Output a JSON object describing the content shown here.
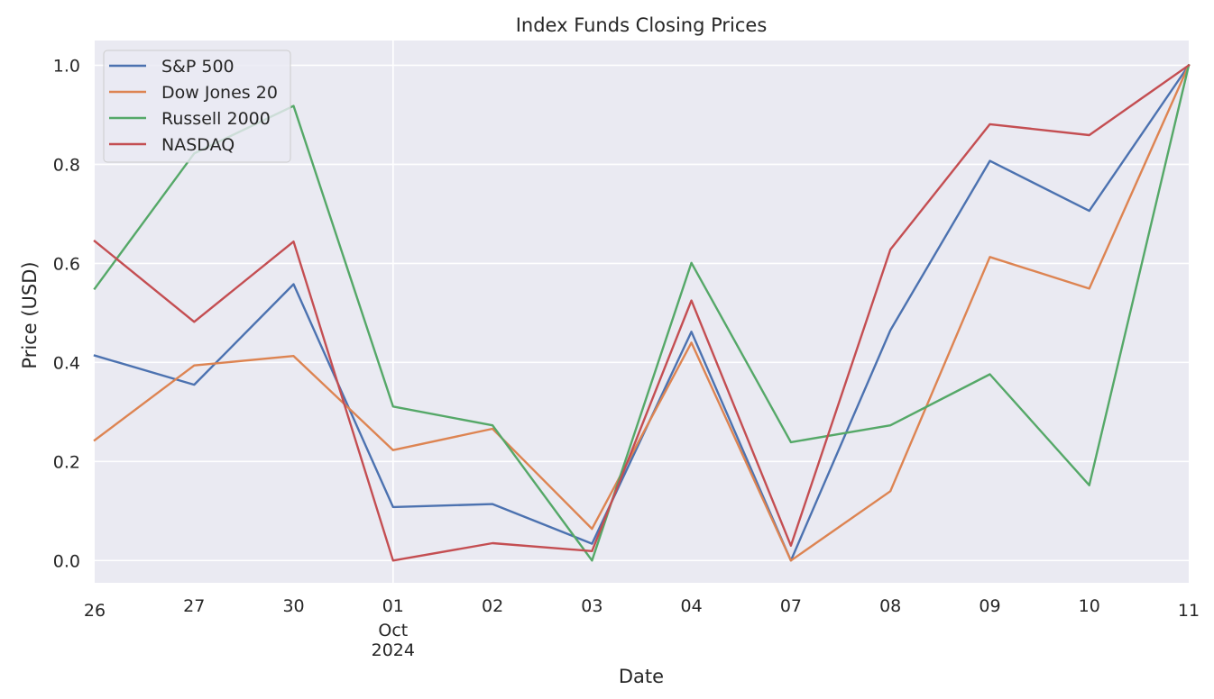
{
  "chart_data": {
    "type": "line",
    "title": "Index Funds Closing Prices",
    "xlabel": "Date",
    "ylabel": "Price (USD)",
    "x": [
      "2024-09-26",
      "2024-09-27",
      "2024-09-30",
      "2024-10-01",
      "2024-10-02",
      "2024-10-03",
      "2024-10-04",
      "2024-10-07",
      "2024-10-08",
      "2024-10-09",
      "2024-10-10",
      "2024-10-11"
    ],
    "x_tick_labels": [
      "26",
      "27",
      "30",
      "01",
      "02",
      "03",
      "04",
      "07",
      "08",
      "09",
      "10",
      "11"
    ],
    "x_tick_sublabel": {
      "month": "Oct",
      "year": "2024"
    },
    "ylim": [
      -0.045,
      1.05
    ],
    "y_ticks": [
      "0.0",
      "0.2",
      "0.4",
      "0.6",
      "0.8",
      "1.0"
    ],
    "grid": true,
    "legend_position": "top-left",
    "background_color": "#eaeaf2",
    "series": [
      {
        "name": "S&P 500",
        "color": "#4c72b0",
        "values": [
          0.414,
          0.355,
          0.558,
          0.108,
          0.114,
          0.034,
          0.462,
          0.0,
          0.465,
          0.807,
          0.706,
          1.0
        ]
      },
      {
        "name": "Dow Jones 20",
        "color": "#dd8452",
        "values": [
          0.243,
          0.394,
          0.413,
          0.223,
          0.266,
          0.064,
          0.44,
          0.0,
          0.14,
          0.613,
          0.549,
          1.0
        ]
      },
      {
        "name": "Russell 2000",
        "color": "#55a868",
        "values": [
          0.549,
          0.822,
          0.918,
          0.311,
          0.273,
          0.0,
          0.601,
          0.239,
          0.273,
          0.376,
          0.152,
          1.0
        ]
      },
      {
        "name": "NASDAQ",
        "color": "#c44e52",
        "values": [
          0.645,
          0.482,
          0.644,
          0.0,
          0.035,
          0.019,
          0.525,
          0.03,
          0.628,
          0.881,
          0.859,
          1.0
        ]
      }
    ]
  }
}
